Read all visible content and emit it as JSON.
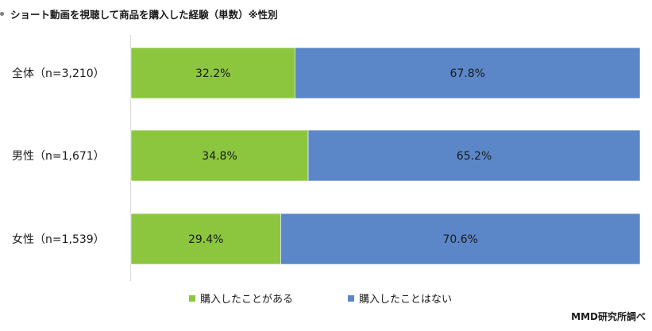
{
  "chart_data": {
    "type": "bar",
    "orientation": "horizontal",
    "stacked": "percent",
    "title": "ショート動画を視聴して商品を購入した経験（単数）※性別",
    "categories": [
      "全体（n=3,210）",
      "男性（n=1,671）",
      "女性（n=1,539）"
    ],
    "series": [
      {
        "name": "購入したことがある",
        "values": [
          32.2,
          34.8,
          29.4
        ],
        "labels": [
          "32.2%",
          "34.8%",
          "29.4%"
        ],
        "color": "#8cc63f"
      },
      {
        "name": "購入したことはない",
        "values": [
          67.8,
          65.2,
          70.6
        ],
        "labels": [
          "67.8%",
          "65.2%",
          "70.6%"
        ],
        "color": "#5b87c8"
      }
    ],
    "xlim": [
      0,
      100
    ],
    "grid": false,
    "legend": "bottom"
  },
  "source": "MMD研究所調べ"
}
